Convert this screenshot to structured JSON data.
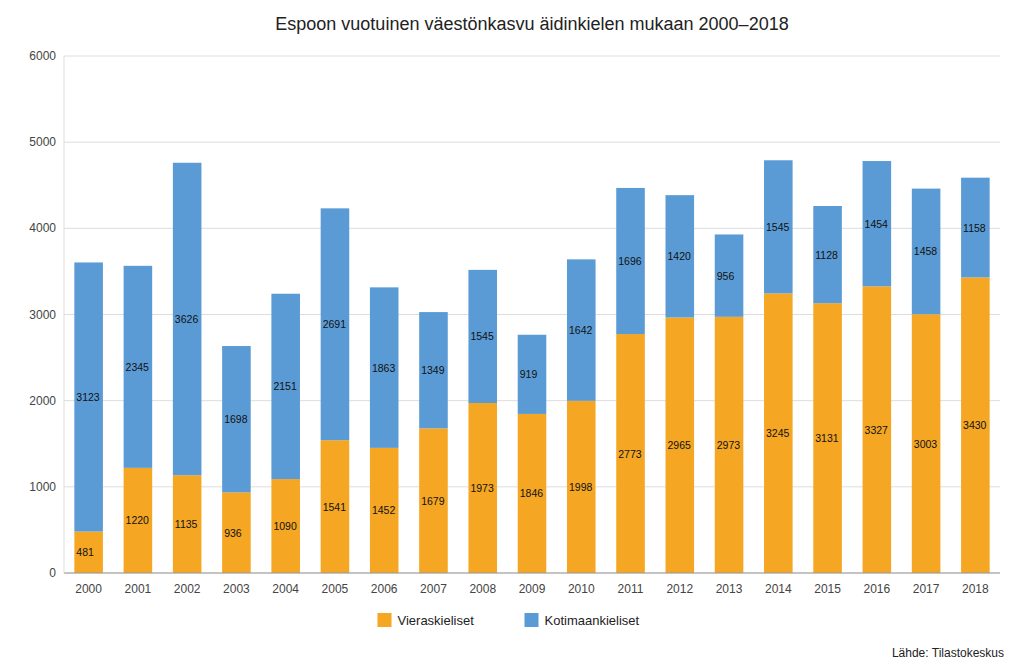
{
  "chart_data": {
    "type": "bar",
    "stacked": true,
    "title": "Espoon vuotuinen väestönkasvu äidinkielen mukaan 2000–2018",
    "categories": [
      "2000",
      "2001",
      "2002",
      "2003",
      "2004",
      "2005",
      "2006",
      "2007",
      "2008",
      "2009",
      "2010",
      "2011",
      "2012",
      "2013",
      "2014",
      "2015",
      "2016",
      "2017",
      "2018"
    ],
    "series": [
      {
        "name": "Vieraskieliset",
        "color": "#F5A623",
        "values": [
          481,
          1220,
          1135,
          936,
          1090,
          1541,
          1452,
          1679,
          1973,
          1846,
          1998,
          2773,
          2965,
          2973,
          3245,
          3131,
          3327,
          3003,
          3430
        ]
      },
      {
        "name": "Kotimaankieliset",
        "color": "#5B9BD5",
        "values": [
          3123,
          2345,
          3626,
          1698,
          2151,
          2691,
          1863,
          1349,
          1545,
          919,
          1642,
          1696,
          1420,
          956,
          1545,
          1128,
          1454,
          1458,
          1158
        ]
      }
    ],
    "ylim": [
      0,
      6000
    ],
    "yticks": [
      0,
      1000,
      2000,
      3000,
      4000,
      5000,
      6000
    ],
    "grid": true,
    "data_labels": true,
    "legend": "bottom",
    "annotations": [
      "Lähde: Tilastokeskus"
    ]
  }
}
